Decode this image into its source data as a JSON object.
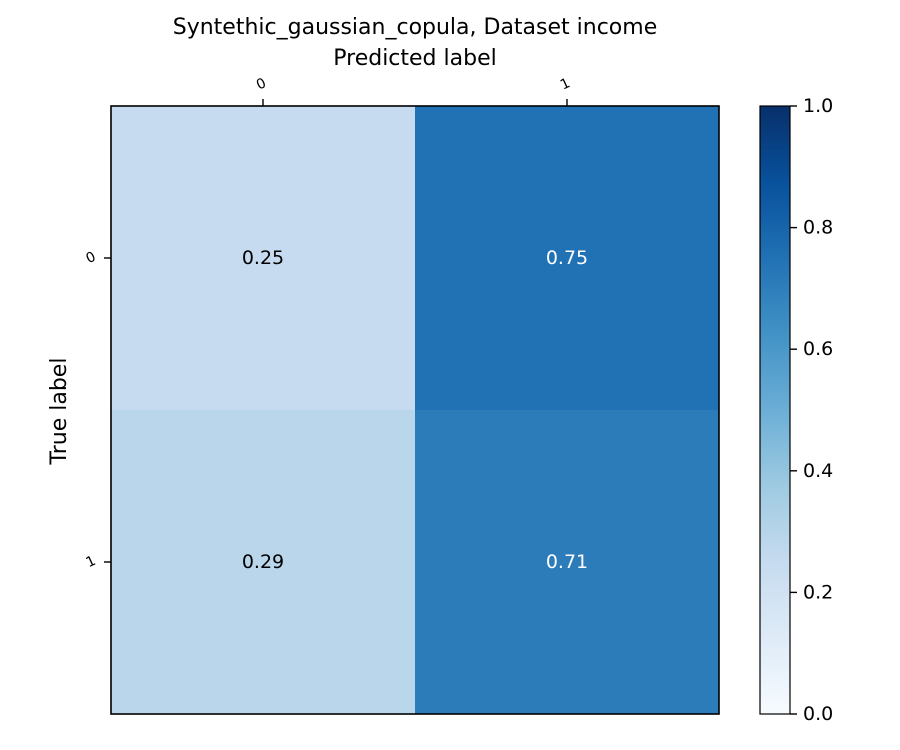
{
  "chart_data": {
    "type": "heatmap",
    "title": "Syntethic_gaussian_copula, Dataset income",
    "xlabel": "Predicted label",
    "ylabel": "True label",
    "x_categories": [
      "0",
      "1"
    ],
    "y_categories": [
      "0",
      "1"
    ],
    "values": [
      [
        0.25,
        0.75
      ],
      [
        0.29,
        0.71
      ]
    ],
    "value_labels": [
      [
        "0.25",
        "0.75"
      ],
      [
        "0.29",
        "0.71"
      ]
    ],
    "colormap": "Blues",
    "colorbar": {
      "range": [
        0.0,
        1.0
      ],
      "ticks": [
        "0.0",
        "0.2",
        "0.4",
        "0.6",
        "0.8",
        "1.0"
      ]
    },
    "colors": {
      "light_text": "#ffffff",
      "dark_text": "#000000",
      "frame": "#000000"
    }
  }
}
